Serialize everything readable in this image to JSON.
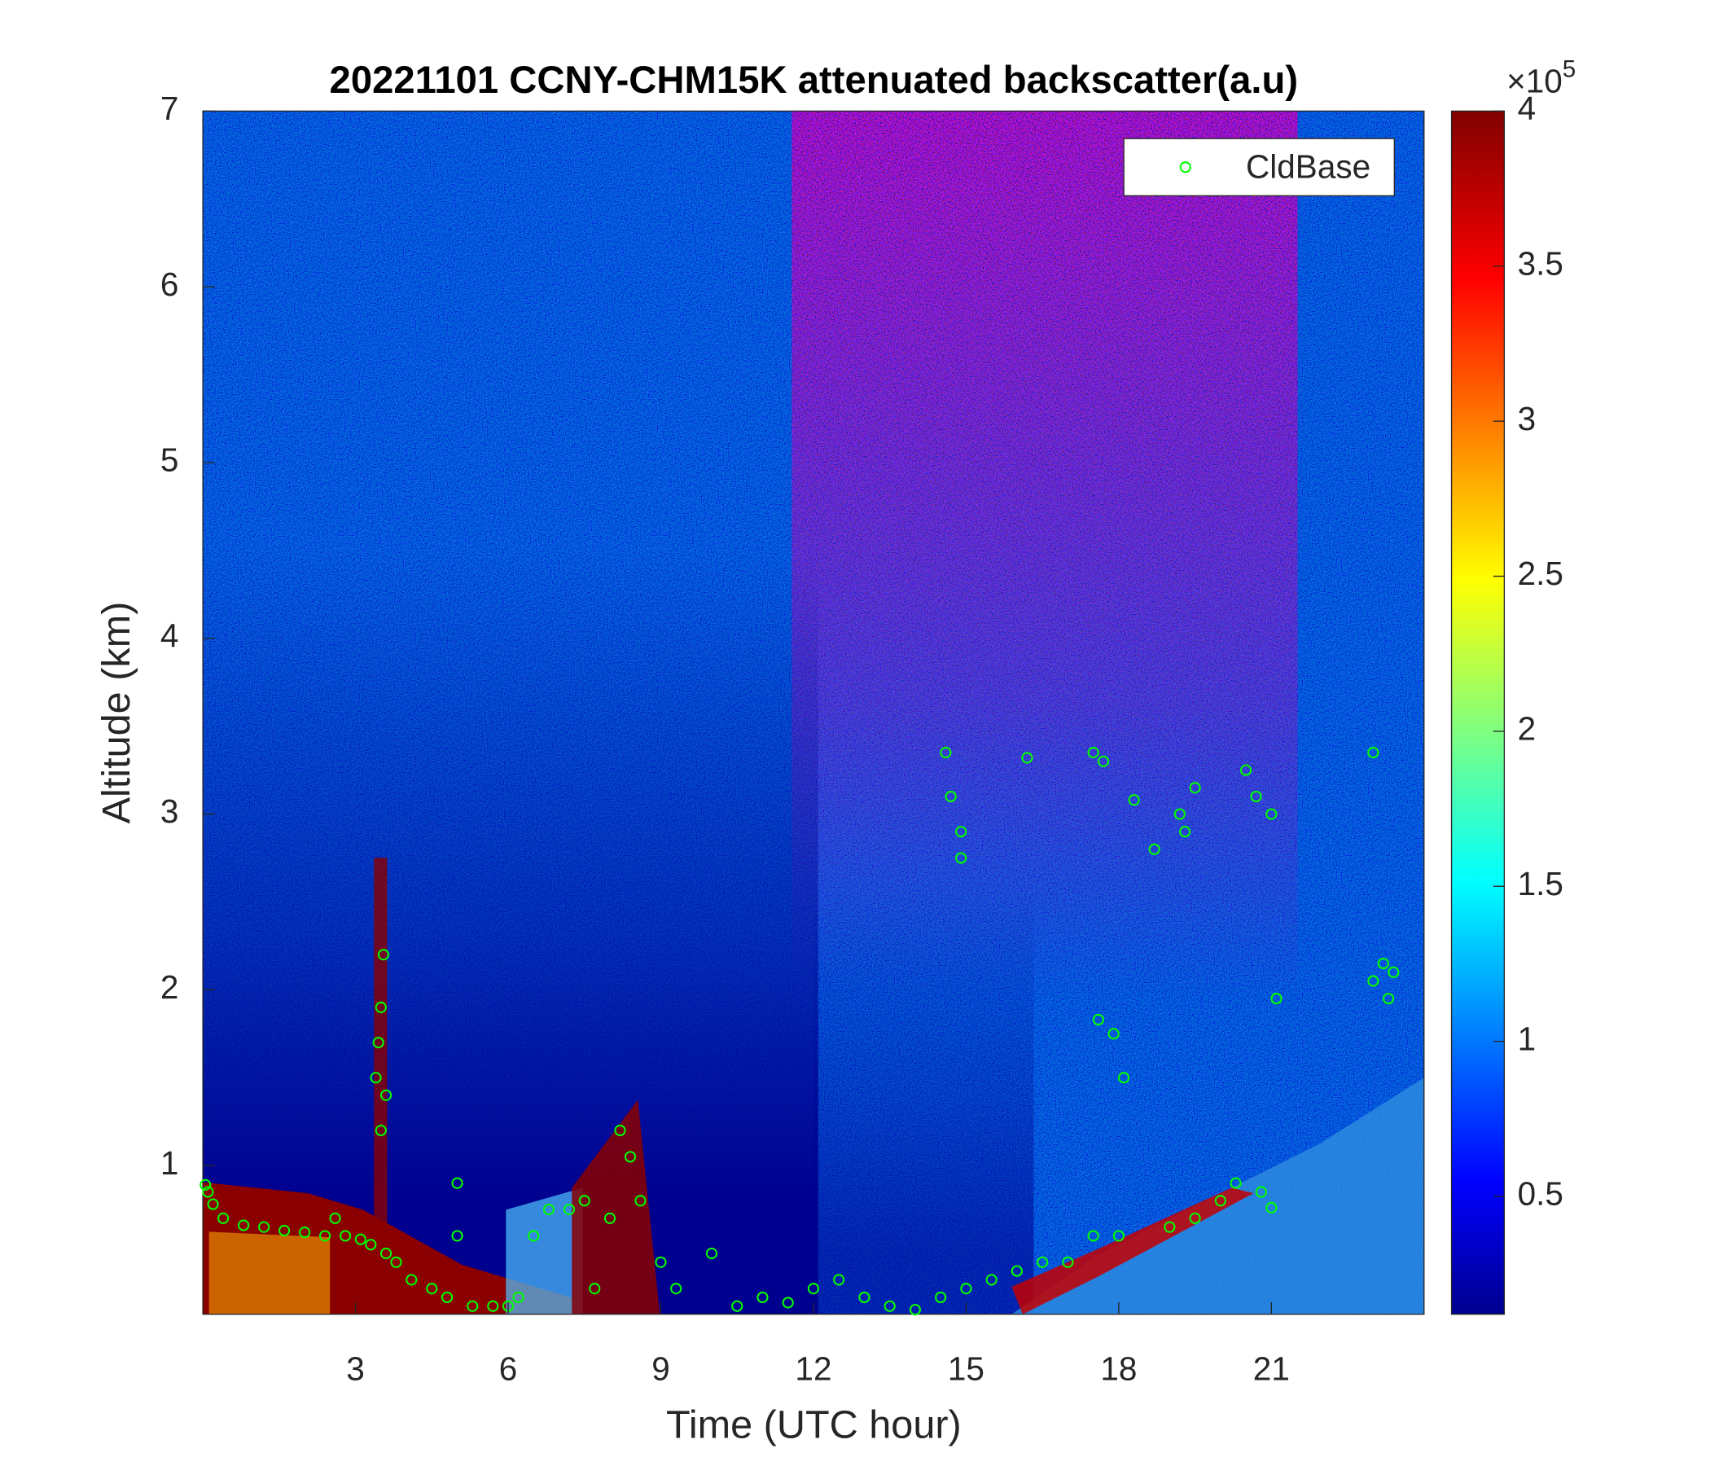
{
  "chart_data": {
    "type": "scatter",
    "title": "20221101 CCNY-CHM15K attenuated backscatter(a.u)",
    "x_label": "Time (UTC hour)",
    "y_label": "Altitude (km)",
    "xlim": [
      0,
      24
    ],
    "ylim": [
      0.154,
      7
    ],
    "xticks": [
      3,
      6,
      9,
      12,
      15,
      18,
      21
    ],
    "yticks": [
      1,
      2,
      3,
      4,
      5,
      6,
      7
    ],
    "legend_position": "upper right",
    "series": [
      {
        "name": "CldBase",
        "color": "#00ff00",
        "x": [
          0.05,
          0.1,
          0.2,
          0.4,
          0.8,
          1.2,
          1.6,
          2,
          2.4,
          2.6,
          2.8,
          3.1,
          3.3,
          3.4,
          3.45,
          3.5,
          3.55,
          3.6,
          3.5,
          3.6,
          3.8,
          4.1,
          4.5,
          4.8,
          5,
          5,
          5.3,
          5.7,
          6,
          6.2,
          6.5,
          6.8,
          7.2,
          7.5,
          7.7,
          8,
          8.2,
          8.4,
          8.6,
          9,
          9.3,
          10,
          10.5,
          11,
          11.5,
          12,
          12.5,
          13,
          13.5,
          14,
          14.5,
          14.6,
          14.7,
          14.9,
          14.9,
          15,
          15.5,
          16,
          16.2,
          16.5,
          17,
          17.5,
          17.6,
          17.7,
          17.5,
          17.9,
          18,
          18.1,
          18.3,
          18.7,
          19,
          19.2,
          19.3,
          19.5,
          19.5,
          20,
          20.3,
          20.5,
          20.7,
          21,
          20.8,
          21,
          21.1,
          23,
          23,
          23.2,
          23.3,
          23.4
        ],
        "values": [
          0.89,
          0.85,
          0.78,
          0.7,
          0.66,
          0.65,
          0.63,
          0.62,
          0.6,
          0.7,
          0.6,
          0.58,
          0.55,
          1.5,
          1.7,
          1.9,
          2.2,
          1.4,
          1.2,
          0.5,
          0.45,
          0.35,
          0.3,
          0.25,
          0.9,
          0.6,
          0.2,
          0.2,
          0.2,
          0.25,
          0.6,
          0.75,
          0.75,
          0.8,
          0.3,
          0.7,
          1.2,
          1.05,
          0.8,
          0.45,
          0.3,
          0.5,
          0.2,
          0.25,
          0.22,
          0.3,
          0.35,
          0.25,
          0.2,
          0.18,
          0.25,
          3.35,
          3.1,
          2.9,
          2.75,
          0.3,
          0.35,
          0.4,
          3.32,
          0.45,
          0.45,
          3.35,
          1.83,
          3.3,
          0.6,
          1.75,
          0.6,
          1.5,
          3.08,
          2.8,
          0.65,
          3.0,
          2.9,
          3.15,
          0.7,
          0.8,
          0.9,
          3.25,
          3.1,
          3.0,
          0.85,
          0.76,
          1.95,
          3.35,
          2.05,
          2.15,
          1.95,
          2.1
        ]
      }
    ],
    "colorbar": {
      "colormap": "jet",
      "lim": [
        0.12,
        4
      ],
      "ticks": [
        0.5,
        1,
        1.5,
        2,
        2.5,
        3,
        3.5,
        4
      ],
      "multiplier_base": "×10",
      "multiplier_exponent": "5"
    }
  }
}
